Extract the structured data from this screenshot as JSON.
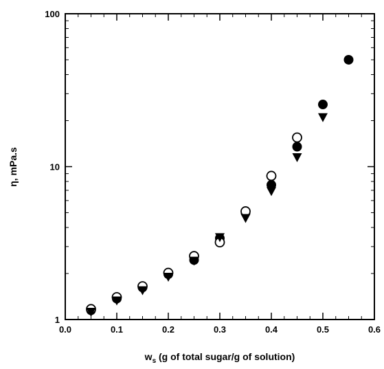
{
  "chart_data": {
    "type": "scatter",
    "title": "",
    "xlabel": "w",
    "xlabel_sub": "s",
    "xlabel_rest": " (g of total sugar/g of solution)",
    "ylabel": "η, mPa.s",
    "xlim": [
      0.0,
      0.6
    ],
    "ylim": [
      1,
      100
    ],
    "yscale": "log",
    "x_ticks": [
      "0.0",
      "0.1",
      "0.2",
      "0.3",
      "0.4",
      "0.5",
      "0.6"
    ],
    "y_ticks": [
      "1",
      "10",
      "100"
    ],
    "grid": false,
    "legend": "none",
    "series": [
      {
        "marker": "filled-circle",
        "points": [
          [
            0.05,
            1.15
          ],
          [
            0.1,
            1.37
          ],
          [
            0.15,
            1.62
          ],
          [
            0.2,
            1.98
          ],
          [
            0.25,
            2.45
          ],
          [
            0.3,
            3.4
          ],
          [
            0.35,
            5.0
          ],
          [
            0.4,
            7.6
          ],
          [
            0.45,
            13.5
          ],
          [
            0.5,
            25.5
          ],
          [
            0.55,
            50.0
          ]
        ]
      },
      {
        "marker": "open-circle",
        "points": [
          [
            0.05,
            1.17
          ],
          [
            0.1,
            1.4
          ],
          [
            0.15,
            1.65
          ],
          [
            0.2,
            2.02
          ],
          [
            0.25,
            2.6
          ],
          [
            0.3,
            3.2
          ],
          [
            0.35,
            5.1
          ],
          [
            0.4,
            8.7
          ],
          [
            0.45,
            15.5
          ]
        ]
      },
      {
        "marker": "filled-triangle-down",
        "points": [
          [
            0.05,
            1.12
          ],
          [
            0.1,
            1.33
          ],
          [
            0.15,
            1.55
          ],
          [
            0.2,
            1.9
          ],
          [
            0.25,
            2.42
          ],
          [
            0.3,
            3.45
          ],
          [
            0.35,
            4.6
          ],
          [
            0.4,
            6.9
          ],
          [
            0.45,
            11.5
          ],
          [
            0.5,
            21.0
          ]
        ]
      }
    ]
  }
}
